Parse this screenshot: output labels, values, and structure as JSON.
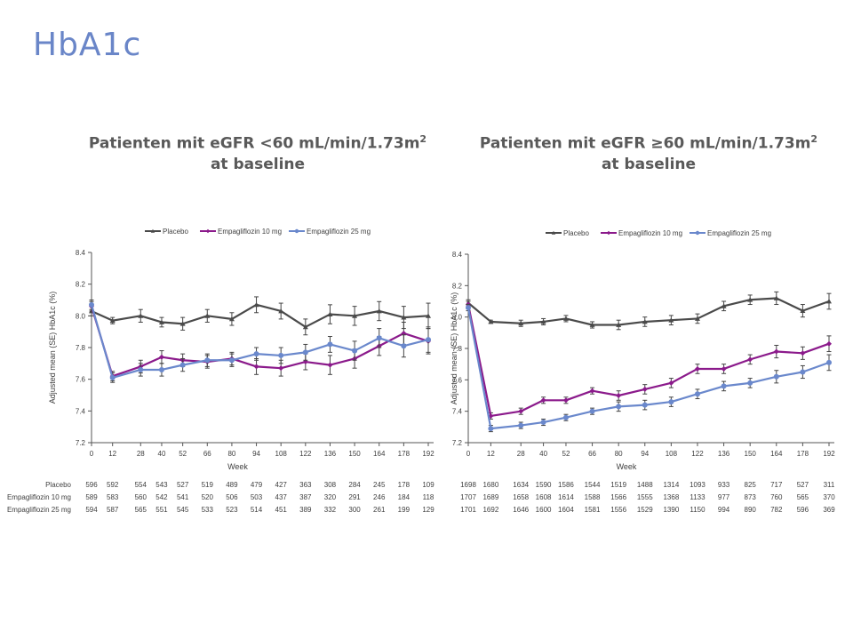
{
  "slide": {
    "title": "HbA1c"
  },
  "panels": [
    {
      "title_line1": "Patienten mit eGFR <60 mL/min/1.73m",
      "title_sup": "2",
      "title_line2": "at baseline"
    },
    {
      "title_line1": "Patienten mit eGFR ≥60 mL/min/1.73m",
      "title_sup": "2",
      "title_line2": "at baseline"
    }
  ],
  "colors": {
    "placebo": "#4a4a4a",
    "empa10": "#8b1a8b",
    "empa25": "#6a88cc"
  },
  "chart_data": [
    {
      "type": "line",
      "title": "Patienten mit eGFR <60 mL/min/1.73m2 at baseline",
      "xlabel": "Week",
      "ylabel": "Adjusted mean (SE) HbA1c (%)",
      "ylim": [
        7.2,
        8.4
      ],
      "yticks": [
        "7.2",
        "7.4",
        "7.6",
        "7.8",
        "8.0",
        "8.2",
        "8.4"
      ],
      "x": [
        0,
        12,
        28,
        40,
        52,
        66,
        80,
        94,
        108,
        122,
        136,
        150,
        164,
        178,
        192
      ],
      "legend": "top",
      "series": [
        {
          "name": "Placebo",
          "key": "placebo",
          "marker": "triangle",
          "values": [
            8.03,
            7.97,
            8.0,
            7.96,
            7.95,
            8.0,
            7.98,
            8.07,
            8.03,
            7.93,
            8.01,
            8.0,
            8.03,
            7.99,
            8.0
          ],
          "se": [
            0.03,
            0.02,
            0.04,
            0.03,
            0.04,
            0.04,
            0.04,
            0.05,
            0.05,
            0.05,
            0.06,
            0.06,
            0.06,
            0.07,
            0.08
          ]
        },
        {
          "name": "Empagliflozin 10 mg",
          "key": "empa10",
          "marker": "diamond",
          "values": [
            8.06,
            7.62,
            7.68,
            7.74,
            7.72,
            7.71,
            7.73,
            7.68,
            7.67,
            7.71,
            7.69,
            7.73,
            7.81,
            7.89,
            7.84
          ],
          "se": [
            0.03,
            0.03,
            0.04,
            0.04,
            0.04,
            0.04,
            0.04,
            0.05,
            0.05,
            0.05,
            0.06,
            0.06,
            0.06,
            0.07,
            0.08
          ]
        },
        {
          "name": "Empagliflozin 25 mg",
          "key": "empa25",
          "marker": "circle",
          "values": [
            8.07,
            7.61,
            7.66,
            7.66,
            7.69,
            7.72,
            7.72,
            7.76,
            7.75,
            7.77,
            7.82,
            7.78,
            7.86,
            7.81,
            7.85
          ],
          "se": [
            0.03,
            0.03,
            0.04,
            0.04,
            0.04,
            0.04,
            0.04,
            0.04,
            0.05,
            0.05,
            0.05,
            0.06,
            0.06,
            0.07,
            0.08
          ]
        }
      ],
      "n_at_risk": [
        {
          "label": "Placebo",
          "values": [
            596,
            592,
            554,
            543,
            527,
            519,
            489,
            479,
            427,
            363,
            308,
            284,
            245,
            178,
            109
          ]
        },
        {
          "label": "Empagliflozin 10 mg",
          "values": [
            589,
            583,
            560,
            542,
            541,
            520,
            506,
            503,
            437,
            387,
            320,
            291,
            246,
            184,
            118
          ]
        },
        {
          "label": "Empagliflozin 25 mg",
          "values": [
            594,
            587,
            565,
            551,
            545,
            533,
            523,
            514,
            451,
            389,
            332,
            300,
            261,
            199,
            129
          ]
        }
      ]
    },
    {
      "type": "line",
      "title": "Patienten mit eGFR ≥60 mL/min/1.73m2 at baseline",
      "xlabel": "Week",
      "ylabel": "Adjusted mean (SE) HbA1c (%)",
      "ylim": [
        7.2,
        8.4
      ],
      "yticks": [
        "7.2",
        "7.4",
        "7.6",
        "7.8",
        "8.0",
        "8.2",
        "8.4"
      ],
      "x": [
        0,
        12,
        28,
        40,
        52,
        66,
        80,
        94,
        108,
        122,
        136,
        150,
        164,
        178,
        192
      ],
      "legend": "top",
      "series": [
        {
          "name": "Placebo",
          "key": "placebo",
          "marker": "triangle",
          "values": [
            8.09,
            7.97,
            7.96,
            7.97,
            7.99,
            7.95,
            7.95,
            7.97,
            7.98,
            7.99,
            8.07,
            8.11,
            8.12,
            8.04,
            8.1
          ],
          "se": [
            0.02,
            0.01,
            0.02,
            0.02,
            0.02,
            0.02,
            0.03,
            0.03,
            0.03,
            0.03,
            0.03,
            0.03,
            0.04,
            0.04,
            0.05
          ]
        },
        {
          "name": "Empagliflozin 10 mg",
          "key": "empa10",
          "marker": "diamond",
          "values": [
            8.08,
            7.37,
            7.4,
            7.47,
            7.47,
            7.53,
            7.5,
            7.54,
            7.58,
            7.67,
            7.67,
            7.73,
            7.78,
            7.77,
            7.83
          ],
          "se": [
            0.02,
            0.02,
            0.02,
            0.02,
            0.02,
            0.02,
            0.03,
            0.03,
            0.03,
            0.03,
            0.03,
            0.03,
            0.04,
            0.04,
            0.05
          ]
        },
        {
          "name": "Empagliflozin 25 mg",
          "key": "empa25",
          "marker": "circle",
          "values": [
            8.06,
            7.29,
            7.31,
            7.33,
            7.36,
            7.4,
            7.43,
            7.44,
            7.46,
            7.51,
            7.56,
            7.58,
            7.62,
            7.65,
            7.71
          ],
          "se": [
            0.02,
            0.02,
            0.02,
            0.02,
            0.02,
            0.02,
            0.03,
            0.03,
            0.03,
            0.03,
            0.03,
            0.03,
            0.04,
            0.04,
            0.05
          ]
        }
      ],
      "n_at_risk": [
        {
          "label": "Placebo",
          "values": [
            1698,
            1680,
            1634,
            1590,
            1586,
            1544,
            1519,
            1488,
            1314,
            1093,
            933,
            825,
            717,
            527,
            311
          ]
        },
        {
          "label": "Empagliflozin 10 mg",
          "values": [
            1707,
            1689,
            1658,
            1608,
            1614,
            1588,
            1566,
            1555,
            1368,
            1133,
            977,
            873,
            760,
            565,
            370
          ]
        },
        {
          "label": "Empagliflozin 25 mg",
          "values": [
            1701,
            1692,
            1646,
            1600,
            1604,
            1581,
            1556,
            1529,
            1390,
            1150,
            994,
            890,
            782,
            596,
            369
          ]
        }
      ]
    }
  ]
}
